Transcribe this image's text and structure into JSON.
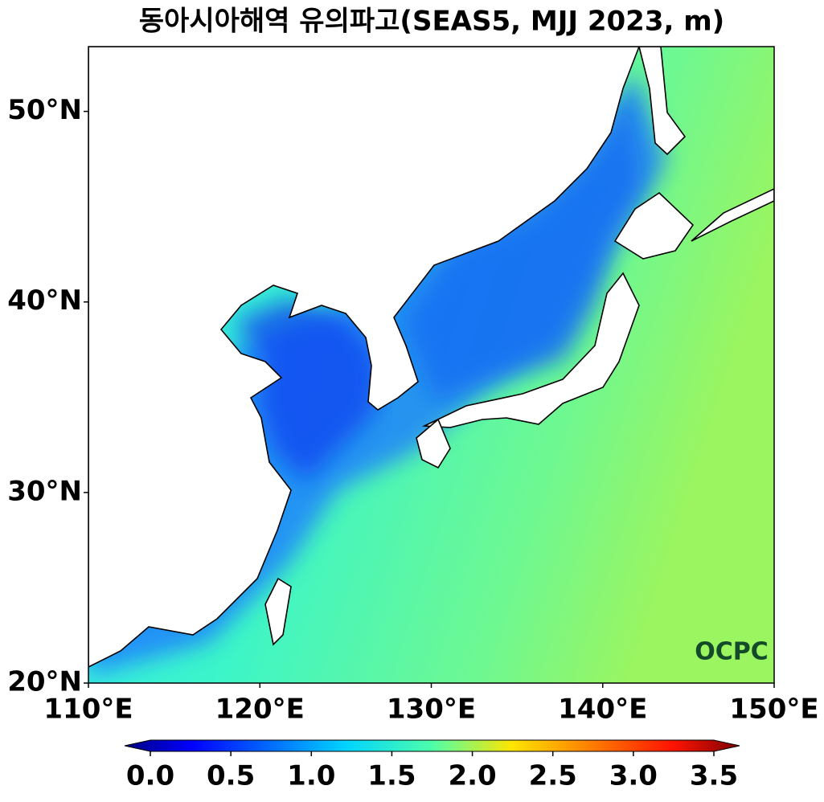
{
  "title": "동아시아해역 유의파고(SEAS5, MJJ 2023, m)",
  "map": {
    "xlim": [
      110,
      150
    ],
    "ylim": [
      20,
      53.4
    ],
    "xticks": [
      {
        "value": 110,
        "label": "110°E"
      },
      {
        "value": 120,
        "label": "120°E"
      },
      {
        "value": 130,
        "label": "130°E"
      },
      {
        "value": 140,
        "label": "140°E"
      },
      {
        "value": 150,
        "label": "150°E"
      }
    ],
    "yticks": [
      {
        "value": 20,
        "label": "20°N"
      },
      {
        "value": 30,
        "label": "30°N"
      },
      {
        "value": 40,
        "label": "40°N"
      },
      {
        "value": 50,
        "label": "50°N"
      }
    ]
  },
  "colorbar": {
    "lim": [
      0,
      3.5
    ],
    "ticks": [
      {
        "value": 0,
        "label": "0.0"
      },
      {
        "value": 0.5,
        "label": "0.5"
      },
      {
        "value": 1,
        "label": "1.0"
      },
      {
        "value": 1.5,
        "label": "1.5"
      },
      {
        "value": 2,
        "label": "2.0"
      },
      {
        "value": 2.5,
        "label": "2.5"
      },
      {
        "value": 3,
        "label": "3.0"
      },
      {
        "value": 3.5,
        "label": "3.5"
      }
    ]
  },
  "logo": "OCPC"
}
